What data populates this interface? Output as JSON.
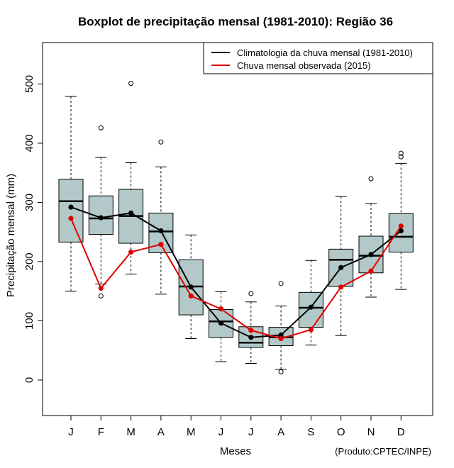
{
  "chart_data": {
    "type": "boxplot",
    "title": "Boxplot de precipitação mensal (1981-2010): Região 36",
    "xlabel": "Meses",
    "ylabel": "Precipitação mensal (mm)",
    "ylim": [
      -60,
      570
    ],
    "yticks": [
      0,
      100,
      200,
      300,
      400,
      500
    ],
    "categories": [
      "J",
      "F",
      "M",
      "A",
      "M",
      "J",
      "J",
      "A",
      "S",
      "O",
      "N",
      "D"
    ],
    "boxes": [
      {
        "min": 150,
        "q1": 233,
        "median": 302,
        "q3": 339,
        "max": 479,
        "outliers": []
      },
      {
        "min": 162,
        "q1": 246,
        "median": 273,
        "q3": 311,
        "max": 376,
        "outliers": [
          426,
          142
        ]
      },
      {
        "min": 179,
        "q1": 231,
        "median": 277,
        "q3": 322,
        "max": 367,
        "outliers": [
          501
        ]
      },
      {
        "min": 145,
        "q1": 215,
        "median": 251,
        "q3": 282,
        "max": 360,
        "outliers": [
          402
        ]
      },
      {
        "min": 70,
        "q1": 110,
        "median": 158,
        "q3": 203,
        "max": 245,
        "outliers": []
      },
      {
        "min": 31,
        "q1": 72,
        "median": 99,
        "q3": 119,
        "max": 149,
        "outliers": []
      },
      {
        "min": 28,
        "q1": 55,
        "median": 63,
        "q3": 90,
        "max": 132,
        "outliers": [
          146
        ]
      },
      {
        "min": 18,
        "q1": 58,
        "median": 72,
        "q3": 89,
        "max": 125,
        "outliers": [
          163,
          14
        ]
      },
      {
        "min": 59,
        "q1": 89,
        "median": 122,
        "q3": 148,
        "max": 202,
        "outliers": []
      },
      {
        "min": 75,
        "q1": 158,
        "median": 203,
        "q3": 221,
        "max": 310,
        "outliers": []
      },
      {
        "min": 140,
        "q1": 181,
        "median": 210,
        "q3": 243,
        "max": 298,
        "outliers": [
          340
        ]
      },
      {
        "min": 153,
        "q1": 216,
        "median": 242,
        "q3": 281,
        "max": 366,
        "outliers": [
          377,
          383
        ]
      }
    ],
    "series": [
      {
        "name": "Climatologia da chuva mensal (1981-2010)",
        "color": "#000000",
        "values": [
          292,
          274,
          282,
          252,
          157,
          96,
          72,
          76,
          123,
          190,
          212,
          252
        ]
      },
      {
        "name": "Chuva mensal observada (2015)",
        "color": "#e00000",
        "values": [
          273,
          155,
          216,
          229,
          142,
          120,
          84,
          70,
          85,
          157,
          184,
          260
        ]
      }
    ],
    "legend_position": "top-right",
    "box_fill": "#b3c9c9",
    "credit": "(Produto:CPTEC/INPE)"
  }
}
